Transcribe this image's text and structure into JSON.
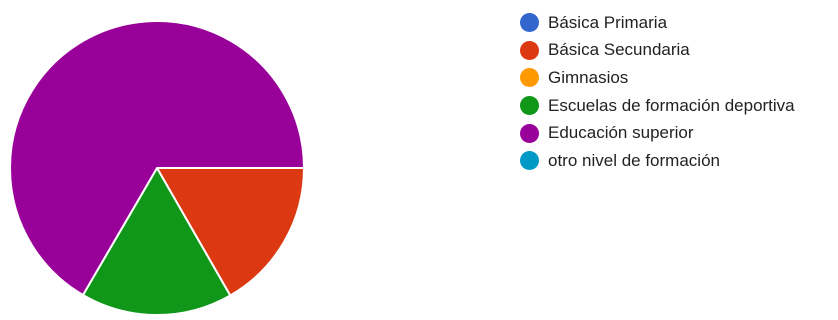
{
  "chart_data": {
    "type": "pie",
    "title": "",
    "legend_position": "right",
    "start_angle_deg": 90,
    "direction": "clockwise",
    "slices": [
      {
        "label": "Básica Primaria",
        "value": 0,
        "color": "#3366cc"
      },
      {
        "label": "Básica Secundaria",
        "value": 16.7,
        "color": "#dc3912"
      },
      {
        "label": "Gimnasios",
        "value": 0,
        "color": "#ff9900"
      },
      {
        "label": "Escuelas de formación deportiva",
        "value": 16.7,
        "color": "#109618"
      },
      {
        "label": "Educación superior",
        "value": 66.6,
        "color": "#990099"
      },
      {
        "label": "otro nivel de formación",
        "value": 0,
        "color": "#0099c6"
      }
    ]
  }
}
